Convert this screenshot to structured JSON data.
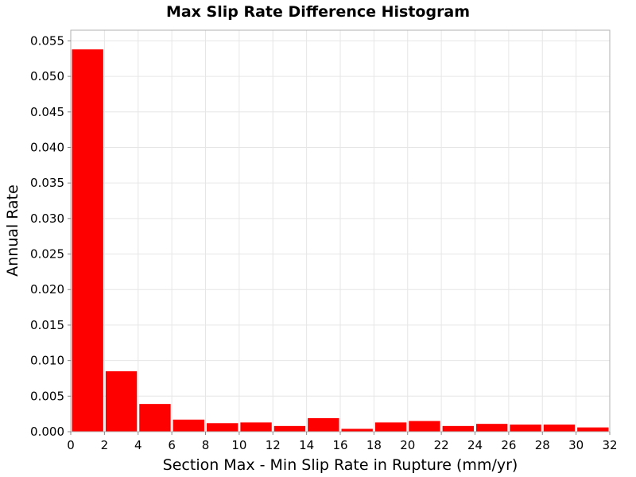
{
  "chart_data": {
    "type": "bar",
    "title": "Max Slip Rate Difference Histogram",
    "xlabel": "Section Max - Min Slip Rate in Rupture (mm/yr)",
    "ylabel": "Annual Rate",
    "xlim": [
      0,
      32
    ],
    "ylim": [
      0,
      0.0565
    ],
    "bin_width": 2,
    "x_ticks": [
      "0",
      "2",
      "4",
      "6",
      "8",
      "10",
      "12",
      "14",
      "16",
      "18",
      "20",
      "22",
      "24",
      "26",
      "28",
      "30",
      "32"
    ],
    "y_ticks": [
      "0.000",
      "0.005",
      "0.010",
      "0.015",
      "0.020",
      "0.025",
      "0.030",
      "0.035",
      "0.040",
      "0.045",
      "0.050",
      "0.055"
    ],
    "bins": [
      {
        "x0": 0,
        "x1": 2,
        "value": 0.0538
      },
      {
        "x0": 2,
        "x1": 4,
        "value": 0.0085
      },
      {
        "x0": 4,
        "x1": 6,
        "value": 0.0039
      },
      {
        "x0": 6,
        "x1": 8,
        "value": 0.0017
      },
      {
        "x0": 8,
        "x1": 10,
        "value": 0.0012
      },
      {
        "x0": 10,
        "x1": 12,
        "value": 0.0013
      },
      {
        "x0": 12,
        "x1": 14,
        "value": 0.0008
      },
      {
        "x0": 14,
        "x1": 16,
        "value": 0.0019
      },
      {
        "x0": 16,
        "x1": 18,
        "value": 0.0004
      },
      {
        "x0": 18,
        "x1": 20,
        "value": 0.0013
      },
      {
        "x0": 20,
        "x1": 22,
        "value": 0.0015
      },
      {
        "x0": 22,
        "x1": 24,
        "value": 0.0008
      },
      {
        "x0": 24,
        "x1": 26,
        "value": 0.0011
      },
      {
        "x0": 26,
        "x1": 28,
        "value": 0.001
      },
      {
        "x0": 28,
        "x1": 30,
        "value": 0.001
      },
      {
        "x0": 30,
        "x1": 32,
        "value": 0.0006
      }
    ],
    "bar_color": "#ff0000",
    "grid": true,
    "grid_color": "#e6e6e6",
    "legend": "none"
  }
}
